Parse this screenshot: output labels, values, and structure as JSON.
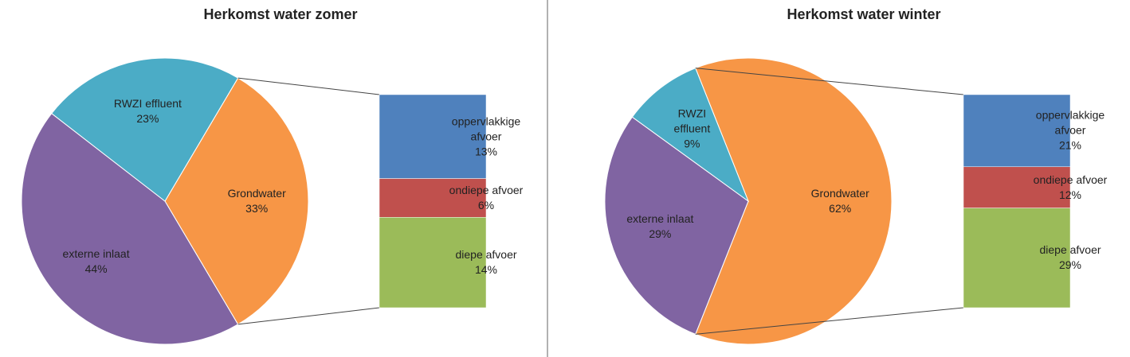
{
  "chart_data": [
    {
      "type": "pie",
      "title": "Herkomst water zomer",
      "categories": [
        "Grondwater",
        "externe inlaat",
        "RWZI effluent"
      ],
      "values": [
        33,
        44,
        23
      ],
      "value_labels": [
        "33%",
        "44%",
        "23%"
      ],
      "colors": [
        "#f79646",
        "#8064a2",
        "#4bacc6"
      ],
      "breakdown": {
        "categories": [
          "oppervlakkige afvoer",
          "ondiepe afvoer",
          "diepe afvoer"
        ],
        "values": [
          13,
          6,
          14
        ],
        "value_labels": [
          "13%",
          "6%",
          "14%"
        ],
        "colors": [
          "#4f81bd",
          "#c0504d",
          "#9bbb59"
        ]
      }
    },
    {
      "type": "pie",
      "title": "Herkomst water winter",
      "categories": [
        "Grondwater",
        "externe inlaat",
        "RWZI effluent"
      ],
      "values": [
        62,
        29,
        9
      ],
      "value_labels": [
        "62%",
        "29%",
        "9%"
      ],
      "colors": [
        "#f79646",
        "#8064a2",
        "#4bacc6"
      ],
      "breakdown": {
        "categories": [
          "oppervlakkige afvoer",
          "ondiepe afvoer",
          "diepe afvoer"
        ],
        "values": [
          21,
          12,
          29
        ],
        "value_labels": [
          "21%",
          "12%",
          "29%"
        ],
        "colors": [
          "#4f81bd",
          "#c0504d",
          "#9bbb59"
        ]
      }
    }
  ]
}
